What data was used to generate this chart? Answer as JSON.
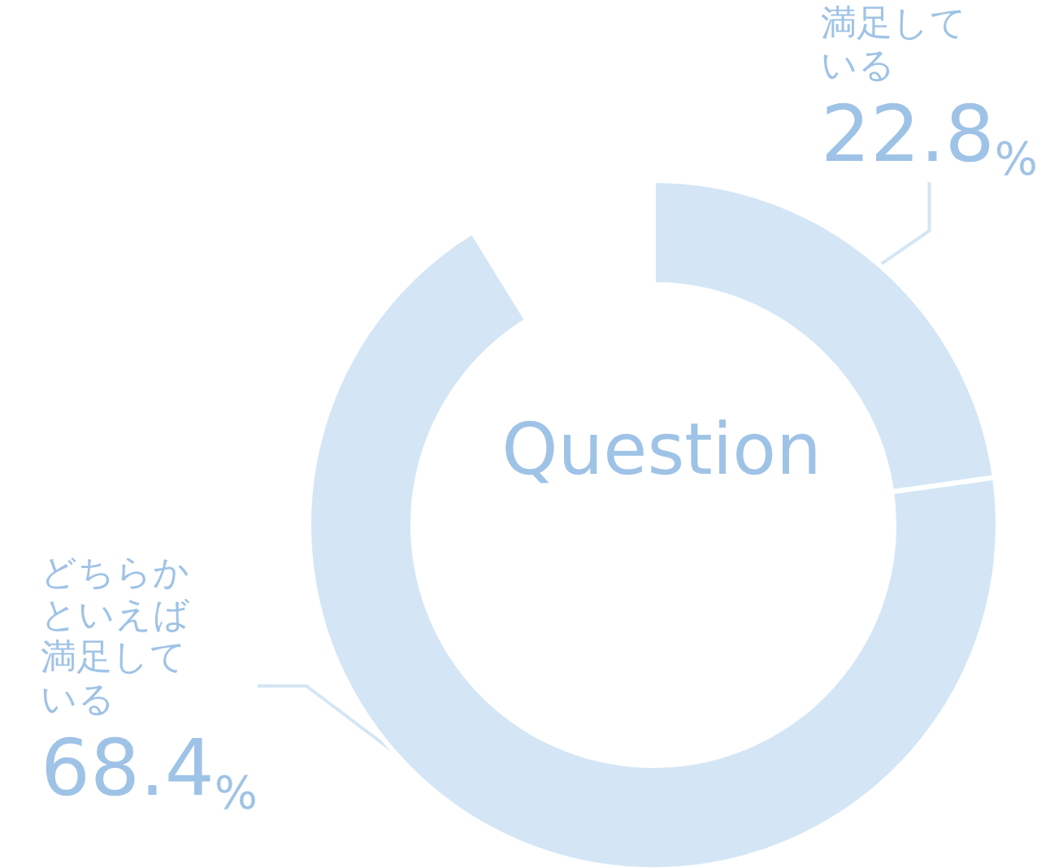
{
  "chart_data": {
    "type": "donut",
    "title": "Question",
    "categories": [
      "満足している",
      "どちらかといえば満足している"
    ],
    "values": [
      22.8,
      68.4
    ],
    "colors": [
      "#d4e6f5",
      "#d4e6f5"
    ],
    "value_labels": [
      "22.8%",
      "68.4%"
    ],
    "legend": false
  }
}
